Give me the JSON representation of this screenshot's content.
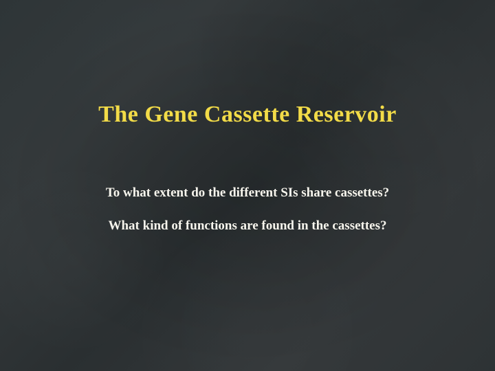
{
  "slide": {
    "background_color": "#2f3436",
    "chalkboard": true,
    "title": {
      "text": "The Gene Cassette Reservoir",
      "color": "#f2db48",
      "fontsize_pt": 34,
      "font_weight": "bold",
      "font_family": "Comic Sans MS"
    },
    "body_lines": [
      {
        "text": "To what extent do the different SIs share cassettes?",
        "color": "#f7f5ed",
        "fontsize_pt": 19,
        "font_weight": "bold",
        "font_family": "Comic Sans MS"
      },
      {
        "text": "What kind of functions are found in the cassettes?",
        "color": "#f7f5ed",
        "fontsize_pt": 19,
        "font_weight": "bold",
        "font_family": "Comic Sans MS"
      }
    ]
  }
}
